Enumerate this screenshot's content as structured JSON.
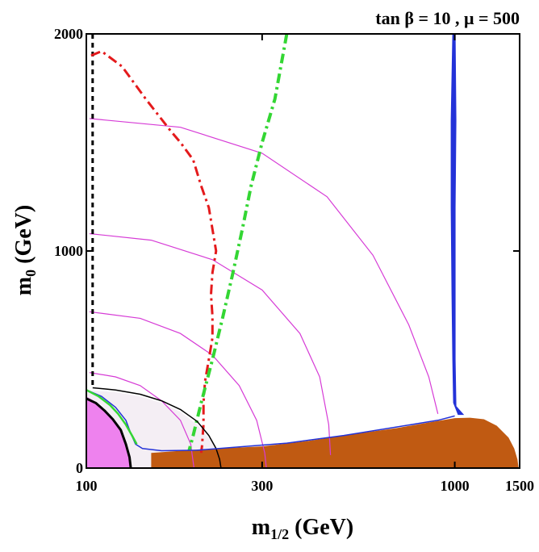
{
  "chart_data": {
    "type": "line",
    "title": "tan β = 10 , μ = 500",
    "xlabel": "m",
    "xlabel_sub": "1/2",
    "xlabel_unit": " (GeV)",
    "ylabel": "m",
    "ylabel_sub": "0",
    "ylabel_unit": " (GeV)",
    "x_scale": "log",
    "xlim": [
      100,
      1500
    ],
    "ylim": [
      0,
      2000
    ],
    "x_ticks": [
      100,
      300,
      1000,
      1500
    ],
    "x_tick_labels": [
      "100",
      "300",
      "1000",
      "1500"
    ],
    "y_ticks": [
      0,
      1000,
      2000
    ],
    "y_tick_labels": [
      "0",
      "1000",
      "2000"
    ],
    "grid": false,
    "colors": {
      "stau_lsp_region": "#c05a12",
      "chargino_excluded": "#ee82ee",
      "relic_density_band": "#2332d8",
      "gmsb_light_region": "#f4eef4",
      "higgs_line": "#e41a1c",
      "bsg_line": "#33d633",
      "chargino_line": "#000000",
      "higgs_contours": "#d63bd6"
    },
    "regions": [
      {
        "id": "stau-lsp-region",
        "color": "#c05a12",
        "points": [
          [
            150,
            0
          ],
          [
            150,
            70
          ],
          [
            200,
            85
          ],
          [
            300,
            100
          ],
          [
            400,
            125
          ],
          [
            550,
            160
          ],
          [
            700,
            185
          ],
          [
            850,
            210
          ],
          [
            1000,
            230
          ],
          [
            1100,
            232
          ],
          [
            1200,
            225
          ],
          [
            1300,
            195
          ],
          [
            1400,
            140
          ],
          [
            1450,
            90
          ],
          [
            1480,
            40
          ],
          [
            1490,
            0
          ]
        ]
      },
      {
        "id": "chargino-excluded-region",
        "color": "#ee82ee",
        "points": [
          [
            100,
            0
          ],
          [
            100,
            330
          ],
          [
            106,
            305
          ],
          [
            112,
            270
          ],
          [
            118,
            230
          ],
          [
            124,
            180
          ],
          [
            128,
            120
          ],
          [
            131,
            60
          ],
          [
            132,
            0
          ]
        ]
      },
      {
        "id": "light-shaded-region",
        "color": "#f4eef4",
        "points": [
          [
            100,
            360
          ],
          [
            120,
            350
          ],
          [
            140,
            330
          ],
          [
            160,
            300
          ],
          [
            180,
            260
          ],
          [
            200,
            200
          ],
          [
            220,
            120
          ],
          [
            230,
            60
          ],
          [
            236,
            0
          ],
          [
            132,
            0
          ],
          [
            128,
            120
          ],
          [
            120,
            220
          ],
          [
            110,
            290
          ],
          [
            100,
            330
          ]
        ]
      },
      {
        "id": "relic-density-band",
        "color": "#2332d8",
        "points": [
          [
            985,
            2000
          ],
          [
            975,
            1600
          ],
          [
            975,
            1200
          ],
          [
            980,
            800
          ],
          [
            985,
            500
          ],
          [
            990,
            300
          ],
          [
            1020,
            245
          ],
          [
            1060,
            245
          ],
          [
            1010,
            285
          ],
          [
            1005,
            500
          ],
          [
            1005,
            800
          ],
          [
            1005,
            1200
          ],
          [
            1010,
            1600
          ],
          [
            1005,
            2000
          ]
        ]
      }
    ],
    "series": [
      {
        "id": "chargino-limit-dashed",
        "color": "#000000",
        "style": "dashed",
        "width": 3,
        "points": [
          [
            104,
            2000
          ],
          [
            104,
            1500
          ],
          [
            104,
            1000
          ],
          [
            104,
            500
          ],
          [
            104,
            380
          ]
        ]
      },
      {
        "id": "higgs-mass-limit",
        "color": "#e41a1c",
        "style": "dashdot",
        "width": 3,
        "points": [
          [
            103,
            1900
          ],
          [
            110,
            1920
          ],
          [
            125,
            1850
          ],
          [
            145,
            1700
          ],
          [
            170,
            1550
          ],
          [
            180,
            1500
          ],
          [
            195,
            1420
          ],
          [
            205,
            1300
          ],
          [
            215,
            1200
          ],
          [
            220,
            1100
          ],
          [
            225,
            1000
          ],
          [
            220,
            900
          ],
          [
            218,
            800
          ],
          [
            220,
            700
          ],
          [
            220,
            600
          ],
          [
            215,
            500
          ],
          [
            210,
            400
          ],
          [
            208,
            300
          ],
          [
            208,
            200
          ],
          [
            206,
            100
          ],
          [
            205,
            70
          ]
        ]
      },
      {
        "id": "bsgamma-limit",
        "color": "#33d633",
        "style": "dashdot",
        "width": 4,
        "points": [
          [
            350,
            2000
          ],
          [
            325,
            1700
          ],
          [
            300,
            1500
          ],
          [
            280,
            1300
          ],
          [
            265,
            1100
          ],
          [
            250,
            900
          ],
          [
            235,
            700
          ],
          [
            220,
            500
          ],
          [
            205,
            300
          ],
          [
            195,
            150
          ],
          [
            190,
            80
          ]
        ]
      },
      {
        "id": "chargino-limit-solid",
        "color": "#000000",
        "style": "solid",
        "width": 3,
        "points": [
          [
            100,
            320
          ],
          [
            106,
            300
          ],
          [
            112,
            265
          ],
          [
            118,
            225
          ],
          [
            124,
            175
          ],
          [
            128,
            110
          ],
          [
            131,
            50
          ],
          [
            132,
            0
          ]
        ]
      },
      {
        "id": "outer-black-contour",
        "color": "#000000",
        "style": "solid",
        "width": 1.5,
        "points": [
          [
            104,
            370
          ],
          [
            120,
            360
          ],
          [
            140,
            340
          ],
          [
            160,
            310
          ],
          [
            180,
            270
          ],
          [
            200,
            215
          ],
          [
            215,
            150
          ],
          [
            225,
            90
          ],
          [
            230,
            40
          ],
          [
            232,
            0
          ]
        ]
      },
      {
        "id": "relic-thin-boundary",
        "color": "#2332d8",
        "style": "solid",
        "width": 1.5,
        "points": [
          [
            100,
            360
          ],
          [
            110,
            330
          ],
          [
            120,
            280
          ],
          [
            128,
            220
          ],
          [
            132,
            160
          ],
          [
            136,
            110
          ],
          [
            142,
            90
          ],
          [
            160,
            80
          ],
          [
            200,
            82
          ],
          [
            250,
            95
          ],
          [
            350,
            115
          ],
          [
            500,
            150
          ],
          [
            700,
            190
          ],
          [
            900,
            220
          ],
          [
            1000,
            240
          ]
        ]
      },
      {
        "id": "green-lower-boundary",
        "color": "#33d633",
        "style": "solid",
        "width": 2.5,
        "points": [
          [
            100,
            360
          ],
          [
            108,
            330
          ],
          [
            116,
            290
          ],
          [
            122,
            250
          ],
          [
            128,
            200
          ],
          [
            133,
            150
          ],
          [
            137,
            110
          ]
        ]
      }
    ],
    "arcs": [
      {
        "id": "higgs-contour-1",
        "color": "#d63bd6",
        "points": [
          [
            102,
            440
          ],
          [
            120,
            420
          ],
          [
            140,
            380
          ],
          [
            160,
            310
          ],
          [
            180,
            220
          ],
          [
            192,
            110
          ],
          [
            196,
            0
          ]
        ]
      },
      {
        "id": "higgs-contour-2",
        "color": "#d63bd6",
        "points": [
          [
            102,
            720
          ],
          [
            140,
            690
          ],
          [
            180,
            620
          ],
          [
            220,
            520
          ],
          [
            260,
            380
          ],
          [
            290,
            220
          ],
          [
            305,
            70
          ],
          [
            308,
            0
          ]
        ]
      },
      {
        "id": "higgs-contour-3",
        "color": "#d63bd6",
        "points": [
          [
            102,
            1080
          ],
          [
            150,
            1050
          ],
          [
            220,
            960
          ],
          [
            300,
            820
          ],
          [
            380,
            620
          ],
          [
            430,
            420
          ],
          [
            455,
            200
          ],
          [
            460,
            60
          ]
        ]
      },
      {
        "id": "higgs-contour-4",
        "color": "#d63bd6",
        "points": [
          [
            102,
            1610
          ],
          [
            180,
            1570
          ],
          [
            300,
            1450
          ],
          [
            450,
            1250
          ],
          [
            600,
            980
          ],
          [
            750,
            660
          ],
          [
            850,
            420
          ],
          [
            900,
            250
          ]
        ]
      }
    ]
  }
}
